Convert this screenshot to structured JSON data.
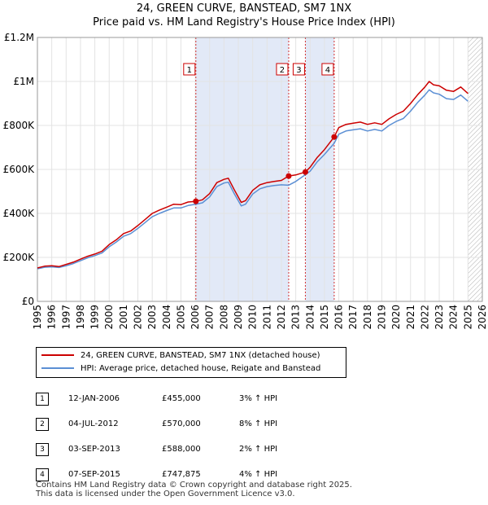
{
  "title_line1": "24, GREEN CURVE, BANSTEAD, SM7 1NX",
  "title_line2": "Price paid vs. HM Land Registry's House Price Index (HPI)",
  "chart_data": {
    "type": "line",
    "title": "24, GREEN CURVE, BANSTEAD, SM7 1NX — Price paid vs. HM Land Registry's House Price Index (HPI)",
    "xlim": [
      1995,
      2026
    ],
    "ylim": [
      0,
      1200000
    ],
    "x_ticks": [
      1995,
      1996,
      1997,
      1998,
      1999,
      2000,
      2001,
      2002,
      2003,
      2004,
      2005,
      2006,
      2007,
      2008,
      2009,
      2010,
      2011,
      2012,
      2013,
      2014,
      2015,
      2016,
      2017,
      2018,
      2019,
      2020,
      2021,
      2022,
      2023,
      2024,
      2025,
      2026
    ],
    "y_ticks": [
      {
        "value": 0,
        "label": "£0"
      },
      {
        "value": 200000,
        "label": "£200K"
      },
      {
        "value": 400000,
        "label": "£400K"
      },
      {
        "value": 600000,
        "label": "£600K"
      },
      {
        "value": 800000,
        "label": "£800K"
      },
      {
        "value": 1000000,
        "label": "£1M"
      },
      {
        "value": 1200000,
        "label": "£1.2M"
      }
    ],
    "grid": true,
    "series": [
      {
        "name": "24, GREEN CURVE, BANSTEAD, SM7 1NX (detached house)",
        "color": "#cc0000",
        "points": [
          [
            1995.0,
            152000
          ],
          [
            1995.5,
            160000
          ],
          [
            1996.0,
            162000
          ],
          [
            1996.5,
            158000
          ],
          [
            1997.0,
            168000
          ],
          [
            1997.5,
            178000
          ],
          [
            1998.0,
            192000
          ],
          [
            1998.5,
            205000
          ],
          [
            1999.0,
            215000
          ],
          [
            1999.5,
            228000
          ],
          [
            2000.0,
            258000
          ],
          [
            2000.5,
            280000
          ],
          [
            2001.0,
            308000
          ],
          [
            2001.5,
            320000
          ],
          [
            2002.0,
            345000
          ],
          [
            2002.5,
            372000
          ],
          [
            2003.0,
            400000
          ],
          [
            2003.5,
            415000
          ],
          [
            2004.0,
            428000
          ],
          [
            2004.5,
            442000
          ],
          [
            2005.0,
            440000
          ],
          [
            2005.5,
            452000
          ],
          [
            2006.04,
            455000
          ],
          [
            2006.5,
            462000
          ],
          [
            2007.0,
            490000
          ],
          [
            2007.5,
            540000
          ],
          [
            2008.0,
            555000
          ],
          [
            2008.3,
            560000
          ],
          [
            2008.7,
            510000
          ],
          [
            2009.2,
            450000
          ],
          [
            2009.5,
            458000
          ],
          [
            2010.0,
            505000
          ],
          [
            2010.5,
            530000
          ],
          [
            2011.0,
            540000
          ],
          [
            2011.5,
            545000
          ],
          [
            2012.0,
            550000
          ],
          [
            2012.5,
            570000
          ],
          [
            2013.0,
            575000
          ],
          [
            2013.67,
            588000
          ],
          [
            2014.0,
            610000
          ],
          [
            2014.5,
            655000
          ],
          [
            2015.0,
            690000
          ],
          [
            2015.68,
            747875
          ],
          [
            2016.0,
            790000
          ],
          [
            2016.5,
            805000
          ],
          [
            2017.0,
            810000
          ],
          [
            2017.5,
            815000
          ],
          [
            2018.0,
            805000
          ],
          [
            2018.5,
            812000
          ],
          [
            2019.0,
            805000
          ],
          [
            2019.5,
            830000
          ],
          [
            2020.0,
            850000
          ],
          [
            2020.5,
            865000
          ],
          [
            2021.0,
            900000
          ],
          [
            2021.5,
            940000
          ],
          [
            2022.0,
            975000
          ],
          [
            2022.3,
            1000000
          ],
          [
            2022.6,
            985000
          ],
          [
            2023.0,
            980000
          ],
          [
            2023.5,
            960000
          ],
          [
            2024.0,
            955000
          ],
          [
            2024.5,
            975000
          ],
          [
            2025.0,
            945000
          ]
        ]
      },
      {
        "name": "HPI: Average price, detached house, Reigate and Banstead",
        "color": "#5b8fd4",
        "points": [
          [
            1995.0,
            148000
          ],
          [
            1995.5,
            155000
          ],
          [
            1996.0,
            157000
          ],
          [
            1996.5,
            154000
          ],
          [
            1997.0,
            162000
          ],
          [
            1997.5,
            172000
          ],
          [
            1998.0,
            185000
          ],
          [
            1998.5,
            198000
          ],
          [
            1999.0,
            208000
          ],
          [
            1999.5,
            220000
          ],
          [
            2000.0,
            248000
          ],
          [
            2000.5,
            270000
          ],
          [
            2001.0,
            296000
          ],
          [
            2001.5,
            308000
          ],
          [
            2002.0,
            332000
          ],
          [
            2002.5,
            358000
          ],
          [
            2003.0,
            385000
          ],
          [
            2003.5,
            400000
          ],
          [
            2004.0,
            413000
          ],
          [
            2004.5,
            425000
          ],
          [
            2005.0,
            425000
          ],
          [
            2005.5,
            436000
          ],
          [
            2006.0,
            441000
          ],
          [
            2006.5,
            448000
          ],
          [
            2007.0,
            475000
          ],
          [
            2007.5,
            522000
          ],
          [
            2008.0,
            538000
          ],
          [
            2008.3,
            542000
          ],
          [
            2008.7,
            492000
          ],
          [
            2009.2,
            434000
          ],
          [
            2009.5,
            442000
          ],
          [
            2010.0,
            488000
          ],
          [
            2010.5,
            512000
          ],
          [
            2011.0,
            522000
          ],
          [
            2011.5,
            527000
          ],
          [
            2012.0,
            530000
          ],
          [
            2012.5,
            528000
          ],
          [
            2013.0,
            545000
          ],
          [
            2013.67,
            576000
          ],
          [
            2014.0,
            592000
          ],
          [
            2014.5,
            635000
          ],
          [
            2015.0,
            668000
          ],
          [
            2015.68,
            719000
          ],
          [
            2016.0,
            760000
          ],
          [
            2016.5,
            775000
          ],
          [
            2017.0,
            780000
          ],
          [
            2017.5,
            785000
          ],
          [
            2018.0,
            775000
          ],
          [
            2018.5,
            782000
          ],
          [
            2019.0,
            775000
          ],
          [
            2019.5,
            800000
          ],
          [
            2020.0,
            818000
          ],
          [
            2020.5,
            832000
          ],
          [
            2021.0,
            865000
          ],
          [
            2021.5,
            905000
          ],
          [
            2022.0,
            938000
          ],
          [
            2022.3,
            962000
          ],
          [
            2022.6,
            948000
          ],
          [
            2023.0,
            942000
          ],
          [
            2023.5,
            922000
          ],
          [
            2024.0,
            918000
          ],
          [
            2024.5,
            938000
          ],
          [
            2025.0,
            910000
          ]
        ]
      }
    ],
    "sales": [
      {
        "num": "1",
        "x": 2006.04,
        "price": 455000,
        "date": "12-JAN-2006",
        "price_label": "£455,000",
        "hpi": "3% ↑ HPI"
      },
      {
        "num": "2",
        "x": 2012.51,
        "price": 570000,
        "date": "04-JUL-2012",
        "price_label": "£570,000",
        "hpi": "8% ↑ HPI"
      },
      {
        "num": "3",
        "x": 2013.67,
        "price": 588000,
        "date": "03-SEP-2013",
        "price_label": "£588,000",
        "hpi": "2% ↑ HPI"
      },
      {
        "num": "4",
        "x": 2015.68,
        "price": 747875,
        "date": "07-SEP-2015",
        "price_label": "£747,875",
        "hpi": "4% ↑ HPI"
      }
    ],
    "shaded_ranges": [
      [
        2006.04,
        2012.51
      ],
      [
        2013.67,
        2015.68
      ]
    ],
    "hatched_from": 2025.0
  },
  "legend": {
    "property_label": "24, GREEN CURVE, BANSTEAD, SM7 1NX (detached house)",
    "hpi_label": "HPI: Average price, detached house, Reigate and Banstead",
    "property_color": "#cc0000",
    "hpi_color": "#5b8fd4"
  },
  "table": [
    {
      "num": "1",
      "date": "12-JAN-2006",
      "price": "£455,000",
      "hpi": "3% ↑ HPI"
    },
    {
      "num": "2",
      "date": "04-JUL-2012",
      "price": "£570,000",
      "hpi": "8% ↑ HPI"
    },
    {
      "num": "3",
      "date": "03-SEP-2013",
      "price": "£588,000",
      "hpi": "2% ↑ HPI"
    },
    {
      "num": "4",
      "date": "07-SEP-2015",
      "price": "£747,875",
      "hpi": "4% ↑ HPI"
    }
  ],
  "footer_line1": "Contains HM Land Registry data © Crown copyright and database right 2025.",
  "footer_line2": "This data is licensed under the Open Government Licence v3.0."
}
